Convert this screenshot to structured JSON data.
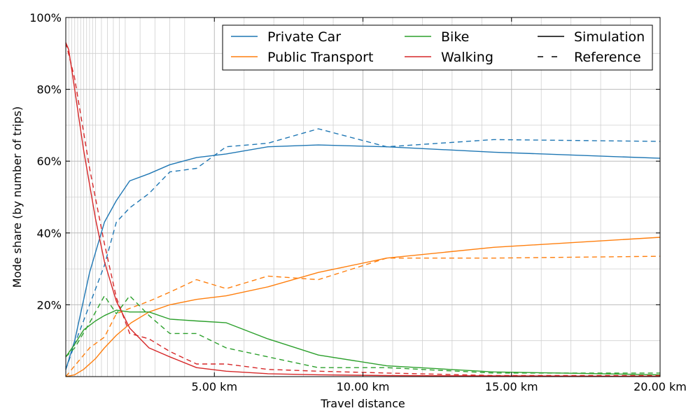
{
  "chart_data": {
    "type": "line",
    "title": "",
    "xlabel": "Travel distance",
    "ylabel": "Mode share (by number of trips)",
    "xlim": [
      0,
      20
    ],
    "ylim": [
      0,
      100
    ],
    "x_ticks": [
      {
        "value": 5,
        "label": "5.00 km"
      },
      {
        "value": 10,
        "label": "10.00 km"
      },
      {
        "value": 15,
        "label": "15.00 km"
      },
      {
        "value": 20,
        "label": "20.00 km"
      }
    ],
    "y_ticks": [
      {
        "value": 20,
        "label": "20%"
      },
      {
        "value": 40,
        "label": "40%"
      },
      {
        "value": 60,
        "label": "60%"
      },
      {
        "value": 80,
        "label": "80%"
      },
      {
        "value": 100,
        "label": "100%"
      }
    ],
    "minor_x_gridlines": [
      0.1,
      0.2,
      0.3,
      0.4,
      0.5,
      0.6,
      0.7,
      0.8,
      0.9,
      1.0,
      1.2,
      1.4,
      1.6,
      1.8,
      2.0,
      2.5,
      3.0,
      3.5,
      4.0,
      6.0,
      7.0,
      8.0,
      9.0,
      11.0,
      12.0,
      13.0,
      14.0,
      16.0,
      17.0,
      18.0,
      19.0
    ],
    "minor_y_gridlines": [
      10,
      30,
      50,
      70,
      90
    ],
    "grid": true,
    "legend_position": "top-right",
    "legend": {
      "modes": [
        {
          "label": "Private Car",
          "color": "#1f77b4"
        },
        {
          "label": "Public Transport",
          "color": "#ff7f0e"
        },
        {
          "label": "Bike",
          "color": "#2ca02c"
        },
        {
          "label": "Walking",
          "color": "#d62728"
        }
      ],
      "styles": [
        {
          "label": "Simulation",
          "dash": "solid"
        },
        {
          "label": "Reference",
          "dash": "dashed"
        }
      ]
    },
    "series": [
      {
        "name": "Private Car",
        "kind": "Simulation",
        "color": "#1f77b4",
        "dash": "solid",
        "x": [
          0,
          0.3,
          0.8,
          1.3,
          1.7,
          2.15,
          2.8,
          3.5,
          4.4,
          5.4,
          6.8,
          8.5,
          10.8,
          14.4,
          20
        ],
        "y": [
          2,
          10,
          29,
          43,
          49,
          54.5,
          56.5,
          59,
          61,
          62,
          64,
          64.5,
          64,
          62.5,
          60.8
        ]
      },
      {
        "name": "Private Car",
        "kind": "Reference",
        "color": "#1f77b4",
        "dash": "dashed",
        "x": [
          0,
          0.3,
          0.8,
          1.3,
          1.7,
          2.15,
          2.8,
          3.5,
          4.4,
          5.4,
          6.8,
          8.5,
          10.8,
          14.4,
          20
        ],
        "y": [
          2,
          9,
          20,
          31,
          43,
          47,
          51,
          57,
          58,
          64,
          65,
          69,
          64,
          66,
          65.5
        ]
      },
      {
        "name": "Public Transport",
        "kind": "Simulation",
        "color": "#ff7f0e",
        "dash": "solid",
        "x": [
          0,
          0.3,
          0.6,
          1.0,
          1.3,
          1.7,
          2.2,
          2.8,
          3.5,
          4.4,
          5.4,
          6.8,
          8.5,
          10.8,
          14.4,
          20
        ],
        "y": [
          0,
          0.5,
          2,
          5,
          8,
          11.5,
          15,
          18,
          20,
          21.5,
          22.5,
          25,
          29,
          33,
          36,
          38.8
        ]
      },
      {
        "name": "Public Transport",
        "kind": "Reference",
        "color": "#ff7f0e",
        "dash": "dashed",
        "x": [
          0,
          0.3,
          0.8,
          1.3,
          1.7,
          2.15,
          2.8,
          3.5,
          4.4,
          5.4,
          6.8,
          8.5,
          10.8,
          14.4,
          20
        ],
        "y": [
          0,
          3,
          8,
          11,
          17.5,
          19,
          21,
          23.5,
          27,
          24.5,
          28,
          27,
          33,
          33,
          33.5
        ]
      },
      {
        "name": "Bike",
        "kind": "Simulation",
        "color": "#2ca02c",
        "dash": "solid",
        "x": [
          0,
          0.3,
          0.6,
          1.0,
          1.3,
          1.7,
          2.15,
          2.8,
          3.5,
          4.4,
          5.4,
          6.8,
          8.5,
          10.8,
          14.4,
          20
        ],
        "y": [
          5.5,
          9,
          13,
          15.5,
          17,
          18.5,
          18,
          18,
          16,
          15.5,
          15,
          10.5,
          6,
          3,
          1.3,
          0.5
        ]
      },
      {
        "name": "Bike",
        "kind": "Reference",
        "color": "#2ca02c",
        "dash": "dashed",
        "x": [
          0,
          0.3,
          0.8,
          1.3,
          1.7,
          2.15,
          2.8,
          3.5,
          4.4,
          5.4,
          6.8,
          8.5,
          10.8,
          14.4,
          20
        ],
        "y": [
          5.5,
          8,
          15,
          22.5,
          17.5,
          22.5,
          17,
          12,
          12,
          8,
          5.5,
          2.5,
          2.5,
          1,
          1
        ]
      },
      {
        "name": "Walking",
        "kind": "Simulation",
        "color": "#d62728",
        "dash": "solid",
        "x": [
          0,
          0.1,
          0.3,
          0.6,
          1.0,
          1.3,
          1.7,
          2.15,
          2.8,
          3.5,
          4.4,
          5.4,
          6.8,
          8.5,
          10.8,
          14.4,
          20
        ],
        "y": [
          93,
          91,
          80,
          63,
          44,
          32,
          21,
          13.5,
          8,
          5.5,
          2.5,
          1.5,
          0.8,
          0.5,
          0.3,
          0.2,
          0.1
        ]
      },
      {
        "name": "Walking",
        "kind": "Reference",
        "color": "#d62728",
        "dash": "dashed",
        "x": [
          0,
          0.3,
          0.8,
          1.3,
          1.7,
          2.15,
          2.8,
          3.5,
          4.4,
          5.4,
          6.8,
          8.5,
          10.8,
          14.4,
          20
        ],
        "y": [
          93,
          83,
          58,
          37,
          22,
          12,
          10.5,
          7,
          3.5,
          3.5,
          2,
          1.5,
          1,
          0.3,
          0.3
        ]
      }
    ]
  }
}
